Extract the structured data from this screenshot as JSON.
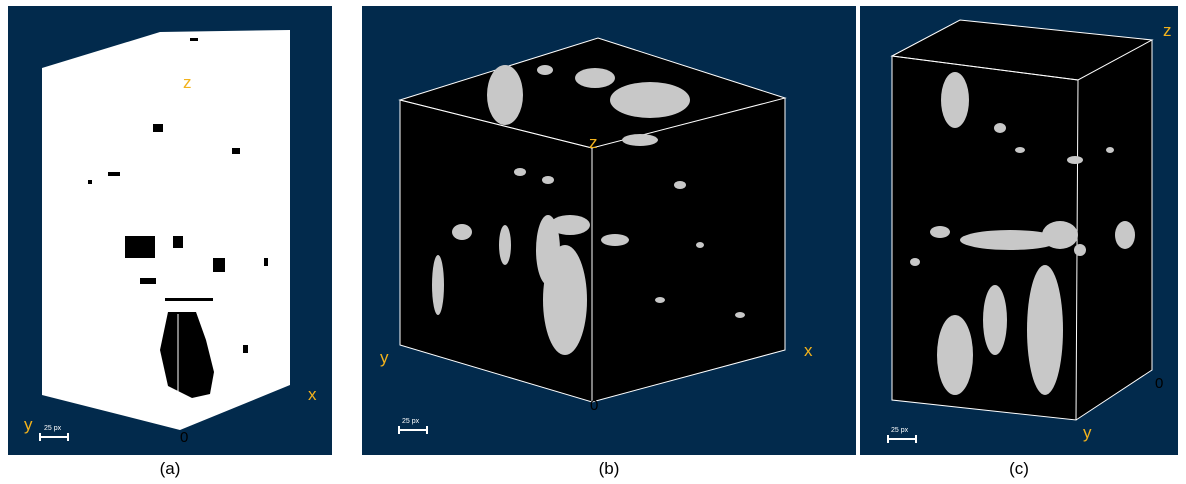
{
  "panels": [
    {
      "caption": "(a)",
      "z": "z",
      "y": "y",
      "x": "x",
      "origin": "0",
      "scale": "25 px"
    },
    {
      "caption": "(b)",
      "z": "z",
      "y": "y",
      "x": "x",
      "origin": "0",
      "scale": "25 px"
    },
    {
      "caption": "(c)",
      "z": "z",
      "y": "y",
      "origin": "0",
      "scale": "25 px"
    }
  ]
}
